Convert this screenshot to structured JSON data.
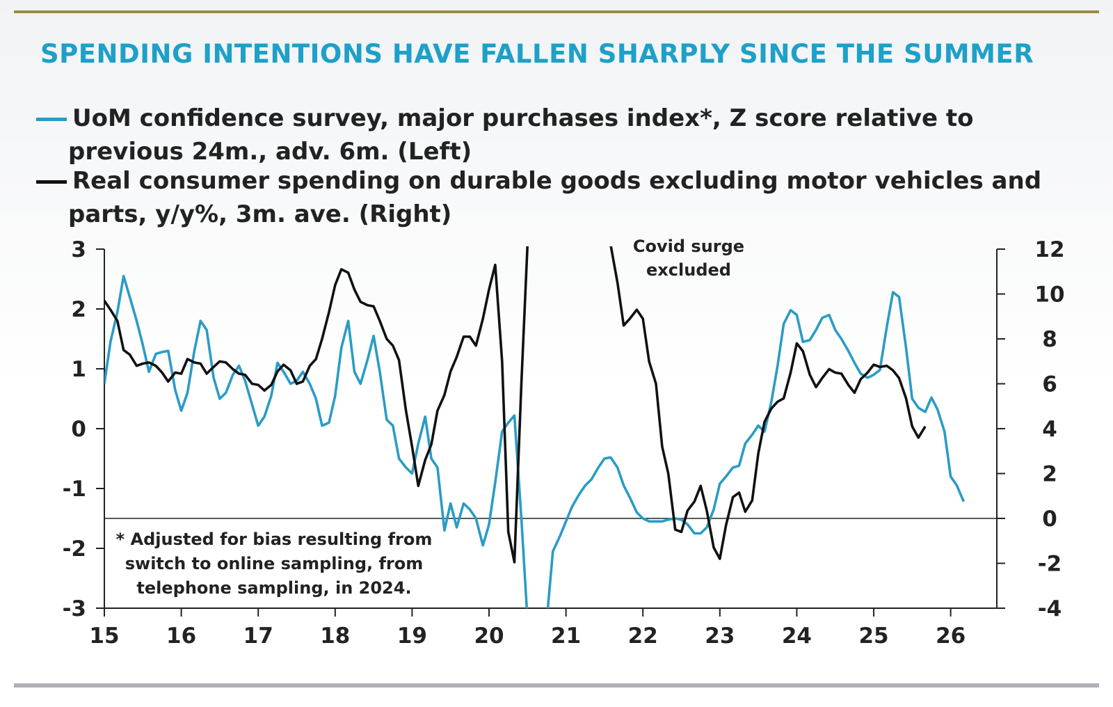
{
  "title": "SPENDING INTENTIONS HAVE FALLEN SHARPLY SINCE THE SUMMER",
  "colors": {
    "title": "#1ea0c8",
    "series_left": "#2a9cc4",
    "series_right": "#111111",
    "top_rule": "#9a8a3a",
    "bottom_rule": "#aeb2b8"
  },
  "legend": [
    {
      "line1": "UoM confidence survey, major purchases index*, Z score relative to",
      "line2": "previous 24m., adv. 6m. (Left)"
    },
    {
      "line1": "Real consumer spending on durable goods excluding motor vehicles and",
      "line2": "parts, y/y%, 3m. ave. (Right)"
    }
  ],
  "annotations": {
    "covid": [
      "Covid surge",
      "excluded"
    ],
    "footnote": [
      "* Adjusted for bias resulting from",
      "switch to online sampling, from",
      "telephone sampling, in 2024."
    ]
  },
  "chart_data": {
    "type": "line",
    "x_ticks": [
      "15",
      "16",
      "17",
      "18",
      "19",
      "20",
      "21",
      "22",
      "23",
      "24",
      "25",
      "26"
    ],
    "x_range": [
      2015,
      2026.6
    ],
    "y_left": {
      "range": [
        -3,
        3
      ],
      "ticks": [
        "3",
        "2",
        "1",
        "0",
        "-1",
        "-2",
        "-3"
      ]
    },
    "y_right": {
      "range": [
        -4,
        12
      ],
      "ticks": [
        "12",
        "10",
        "8",
        "6",
        "4",
        "2",
        "0",
        "-2",
        "-4"
      ]
    },
    "zero_line_axis": "right",
    "series": [
      {
        "name": "UoM confidence survey, major purchases index*, Z score relative to previous 24m., adv. 6m. (Left)",
        "axis": "left",
        "points": [
          [
            2015.0,
            0.75
          ],
          [
            2015.08,
            1.45
          ],
          [
            2015.17,
            1.95
          ],
          [
            2015.25,
            2.55
          ],
          [
            2015.33,
            2.2
          ],
          [
            2015.42,
            1.8
          ],
          [
            2015.5,
            1.4
          ],
          [
            2015.58,
            0.95
          ],
          [
            2015.67,
            1.25
          ],
          [
            2015.75,
            1.28
          ],
          [
            2015.83,
            1.3
          ],
          [
            2015.92,
            0.65
          ],
          [
            2016.0,
            0.3
          ],
          [
            2016.08,
            0.6
          ],
          [
            2016.17,
            1.3
          ],
          [
            2016.25,
            1.8
          ],
          [
            2016.33,
            1.65
          ],
          [
            2016.42,
            0.85
          ],
          [
            2016.5,
            0.5
          ],
          [
            2016.58,
            0.6
          ],
          [
            2016.67,
            0.9
          ],
          [
            2016.75,
            1.05
          ],
          [
            2016.83,
            0.8
          ],
          [
            2016.92,
            0.4
          ],
          [
            2017.0,
            0.05
          ],
          [
            2017.08,
            0.2
          ],
          [
            2017.17,
            0.55
          ],
          [
            2017.25,
            1.1
          ],
          [
            2017.33,
            0.95
          ],
          [
            2017.42,
            0.75
          ],
          [
            2017.5,
            0.8
          ],
          [
            2017.58,
            0.95
          ],
          [
            2017.67,
            0.75
          ],
          [
            2017.75,
            0.5
          ],
          [
            2017.83,
            0.05
          ],
          [
            2017.92,
            0.1
          ],
          [
            2018.0,
            0.55
          ],
          [
            2018.08,
            1.35
          ],
          [
            2018.17,
            1.8
          ],
          [
            2018.25,
            0.95
          ],
          [
            2018.33,
            0.75
          ],
          [
            2018.42,
            1.15
          ],
          [
            2018.5,
            1.55
          ],
          [
            2018.58,
            0.95
          ],
          [
            2018.67,
            0.15
          ],
          [
            2018.75,
            0.05
          ],
          [
            2018.83,
            -0.5
          ],
          [
            2018.92,
            -0.65
          ],
          [
            2019.0,
            -0.75
          ],
          [
            2019.08,
            -0.25
          ],
          [
            2019.17,
            0.2
          ],
          [
            2019.25,
            -0.5
          ],
          [
            2019.33,
            -0.65
          ],
          [
            2019.42,
            -1.7
          ],
          [
            2019.5,
            -1.25
          ],
          [
            2019.58,
            -1.65
          ],
          [
            2019.67,
            -1.25
          ],
          [
            2019.75,
            -1.35
          ],
          [
            2019.83,
            -1.5
          ],
          [
            2019.92,
            -1.95
          ],
          [
            2020.0,
            -1.6
          ],
          [
            2020.08,
            -0.9
          ],
          [
            2020.17,
            -0.05
          ],
          [
            2020.25,
            0.1
          ],
          [
            2020.33,
            0.22
          ],
          [
            2020.42,
            -1.5
          ],
          [
            2020.5,
            -3.2
          ],
          null,
          [
            2020.75,
            -3.2
          ],
          [
            2020.83,
            -2.05
          ],
          [
            2020.92,
            -1.8
          ],
          [
            2021.0,
            -1.55
          ],
          [
            2021.08,
            -1.3
          ],
          [
            2021.17,
            -1.1
          ],
          [
            2021.25,
            -0.95
          ],
          [
            2021.33,
            -0.85
          ],
          [
            2021.42,
            -0.65
          ],
          [
            2021.5,
            -0.5
          ],
          [
            2021.58,
            -0.48
          ],
          [
            2021.67,
            -0.65
          ],
          [
            2021.75,
            -0.95
          ],
          [
            2021.83,
            -1.15
          ],
          [
            2021.92,
            -1.4
          ],
          [
            2022.0,
            -1.5
          ],
          [
            2022.08,
            -1.55
          ],
          [
            2022.17,
            -1.55
          ],
          [
            2022.25,
            -1.55
          ],
          [
            2022.33,
            -1.52
          ],
          [
            2022.42,
            -1.5
          ],
          [
            2022.5,
            -1.52
          ],
          [
            2022.58,
            -1.6
          ],
          [
            2022.67,
            -1.75
          ],
          [
            2022.75,
            -1.75
          ],
          [
            2022.83,
            -1.65
          ],
          [
            2022.92,
            -1.35
          ],
          [
            2023.0,
            -0.92
          ],
          [
            2023.08,
            -0.8
          ],
          [
            2023.17,
            -0.65
          ],
          [
            2023.25,
            -0.62
          ],
          [
            2023.33,
            -0.25
          ],
          [
            2023.42,
            -0.1
          ],
          [
            2023.5,
            0.05
          ],
          [
            2023.58,
            -0.05
          ],
          [
            2023.67,
            0.45
          ],
          [
            2023.75,
            1.05
          ],
          [
            2023.83,
            1.75
          ],
          [
            2023.92,
            1.98
          ],
          [
            2024.0,
            1.9
          ],
          [
            2024.08,
            1.45
          ],
          [
            2024.17,
            1.48
          ],
          [
            2024.25,
            1.65
          ],
          [
            2024.33,
            1.85
          ],
          [
            2024.42,
            1.9
          ],
          [
            2024.5,
            1.65
          ],
          [
            2024.58,
            1.5
          ],
          [
            2024.67,
            1.3
          ],
          [
            2024.75,
            1.1
          ],
          [
            2024.83,
            0.92
          ],
          [
            2024.92,
            0.85
          ],
          [
            2025.0,
            0.9
          ],
          [
            2025.08,
            0.98
          ],
          [
            2025.17,
            1.7
          ],
          [
            2025.25,
            2.28
          ],
          [
            2025.33,
            2.2
          ],
          [
            2025.42,
            1.35
          ],
          [
            2025.5,
            0.5
          ],
          [
            2025.58,
            0.35
          ],
          [
            2025.67,
            0.28
          ],
          [
            2025.75,
            0.52
          ],
          [
            2025.83,
            0.32
          ],
          [
            2025.92,
            -0.05
          ],
          [
            2026.0,
            -0.8
          ],
          [
            2026.08,
            -0.95
          ],
          [
            2026.17,
            -1.22
          ]
        ]
      },
      {
        "name": "Real consumer spending on durable goods excluding motor vehicles and parts, y/y%, 3m. ave. (Right)",
        "axis": "right",
        "points": [
          [
            2015.0,
            9.7
          ],
          [
            2015.08,
            9.3
          ],
          [
            2015.17,
            8.8
          ],
          [
            2015.25,
            7.5
          ],
          [
            2015.33,
            7.3
          ],
          [
            2015.42,
            6.8
          ],
          [
            2015.5,
            6.9
          ],
          [
            2015.58,
            6.95
          ],
          [
            2015.67,
            6.8
          ],
          [
            2015.75,
            6.5
          ],
          [
            2015.83,
            6.1
          ],
          [
            2015.92,
            6.5
          ],
          [
            2016.0,
            6.45
          ],
          [
            2016.08,
            7.1
          ],
          [
            2016.17,
            6.95
          ],
          [
            2016.25,
            6.9
          ],
          [
            2016.33,
            6.45
          ],
          [
            2016.42,
            6.75
          ],
          [
            2016.5,
            7.0
          ],
          [
            2016.58,
            6.95
          ],
          [
            2016.67,
            6.65
          ],
          [
            2016.75,
            6.45
          ],
          [
            2016.83,
            6.4
          ],
          [
            2016.92,
            6.0
          ],
          [
            2017.0,
            5.95
          ],
          [
            2017.08,
            5.7
          ],
          [
            2017.17,
            5.95
          ],
          [
            2017.25,
            6.55
          ],
          [
            2017.33,
            6.85
          ],
          [
            2017.42,
            6.6
          ],
          [
            2017.5,
            6.0
          ],
          [
            2017.58,
            6.1
          ],
          [
            2017.67,
            6.8
          ],
          [
            2017.75,
            7.1
          ],
          [
            2017.83,
            8.0
          ],
          [
            2017.92,
            9.2
          ],
          [
            2018.0,
            10.4
          ],
          [
            2018.08,
            11.1
          ],
          [
            2018.17,
            10.95
          ],
          [
            2018.25,
            10.2
          ],
          [
            2018.33,
            9.65
          ],
          [
            2018.42,
            9.5
          ],
          [
            2018.5,
            9.45
          ],
          [
            2018.58,
            8.8
          ],
          [
            2018.67,
            8.0
          ],
          [
            2018.75,
            7.7
          ],
          [
            2018.83,
            7.05
          ],
          [
            2018.92,
            4.8
          ],
          [
            2019.0,
            3.2
          ],
          [
            2019.08,
            1.45
          ],
          [
            2019.17,
            2.6
          ],
          [
            2019.25,
            3.3
          ],
          [
            2019.33,
            4.8
          ],
          [
            2019.42,
            5.5
          ],
          [
            2019.5,
            6.55
          ],
          [
            2019.58,
            7.2
          ],
          [
            2019.67,
            8.1
          ],
          [
            2019.75,
            8.1
          ],
          [
            2019.83,
            7.7
          ],
          [
            2019.92,
            8.9
          ],
          [
            2020.0,
            10.2
          ],
          [
            2020.08,
            11.3
          ],
          [
            2020.17,
            7.0
          ],
          [
            2020.25,
            -0.6
          ],
          [
            2020.33,
            -1.95
          ],
          [
            2020.42,
            6.0
          ],
          [
            2020.5,
            12.2
          ],
          null,
          [
            2021.58,
            12.2
          ],
          [
            2021.67,
            10.5
          ],
          [
            2021.75,
            8.6
          ],
          [
            2021.83,
            8.9
          ],
          [
            2021.92,
            9.3
          ],
          [
            2022.0,
            8.9
          ],
          [
            2022.08,
            7.0
          ],
          [
            2022.17,
            6.0
          ],
          [
            2022.25,
            3.2
          ],
          [
            2022.33,
            2.0
          ],
          [
            2022.42,
            -0.5
          ],
          [
            2022.5,
            -0.6
          ],
          [
            2022.58,
            0.35
          ],
          [
            2022.67,
            0.75
          ],
          [
            2022.75,
            1.45
          ],
          [
            2022.83,
            0.35
          ],
          [
            2022.92,
            -1.3
          ],
          [
            2023.0,
            -1.8
          ],
          [
            2023.08,
            -0.3
          ],
          [
            2023.17,
            0.95
          ],
          [
            2023.25,
            1.15
          ],
          [
            2023.33,
            0.3
          ],
          [
            2023.42,
            0.8
          ],
          [
            2023.5,
            2.9
          ],
          [
            2023.58,
            4.3
          ],
          [
            2023.67,
            4.9
          ],
          [
            2023.75,
            5.2
          ],
          [
            2023.83,
            5.35
          ],
          [
            2023.92,
            6.5
          ],
          [
            2024.0,
            7.8
          ],
          [
            2024.08,
            7.45
          ],
          [
            2024.17,
            6.4
          ],
          [
            2024.25,
            5.85
          ],
          [
            2024.33,
            6.25
          ],
          [
            2024.42,
            6.65
          ],
          [
            2024.5,
            6.5
          ],
          [
            2024.58,
            6.45
          ],
          [
            2024.67,
            5.95
          ],
          [
            2024.75,
            5.6
          ],
          [
            2024.83,
            6.2
          ],
          [
            2024.92,
            6.5
          ],
          [
            2025.0,
            6.85
          ],
          [
            2025.08,
            6.75
          ],
          [
            2025.17,
            6.8
          ],
          [
            2025.25,
            6.6
          ],
          [
            2025.33,
            6.25
          ],
          [
            2025.42,
            5.35
          ],
          [
            2025.5,
            4.1
          ],
          [
            2025.58,
            3.6
          ],
          [
            2025.67,
            4.1
          ]
        ]
      }
    ]
  }
}
